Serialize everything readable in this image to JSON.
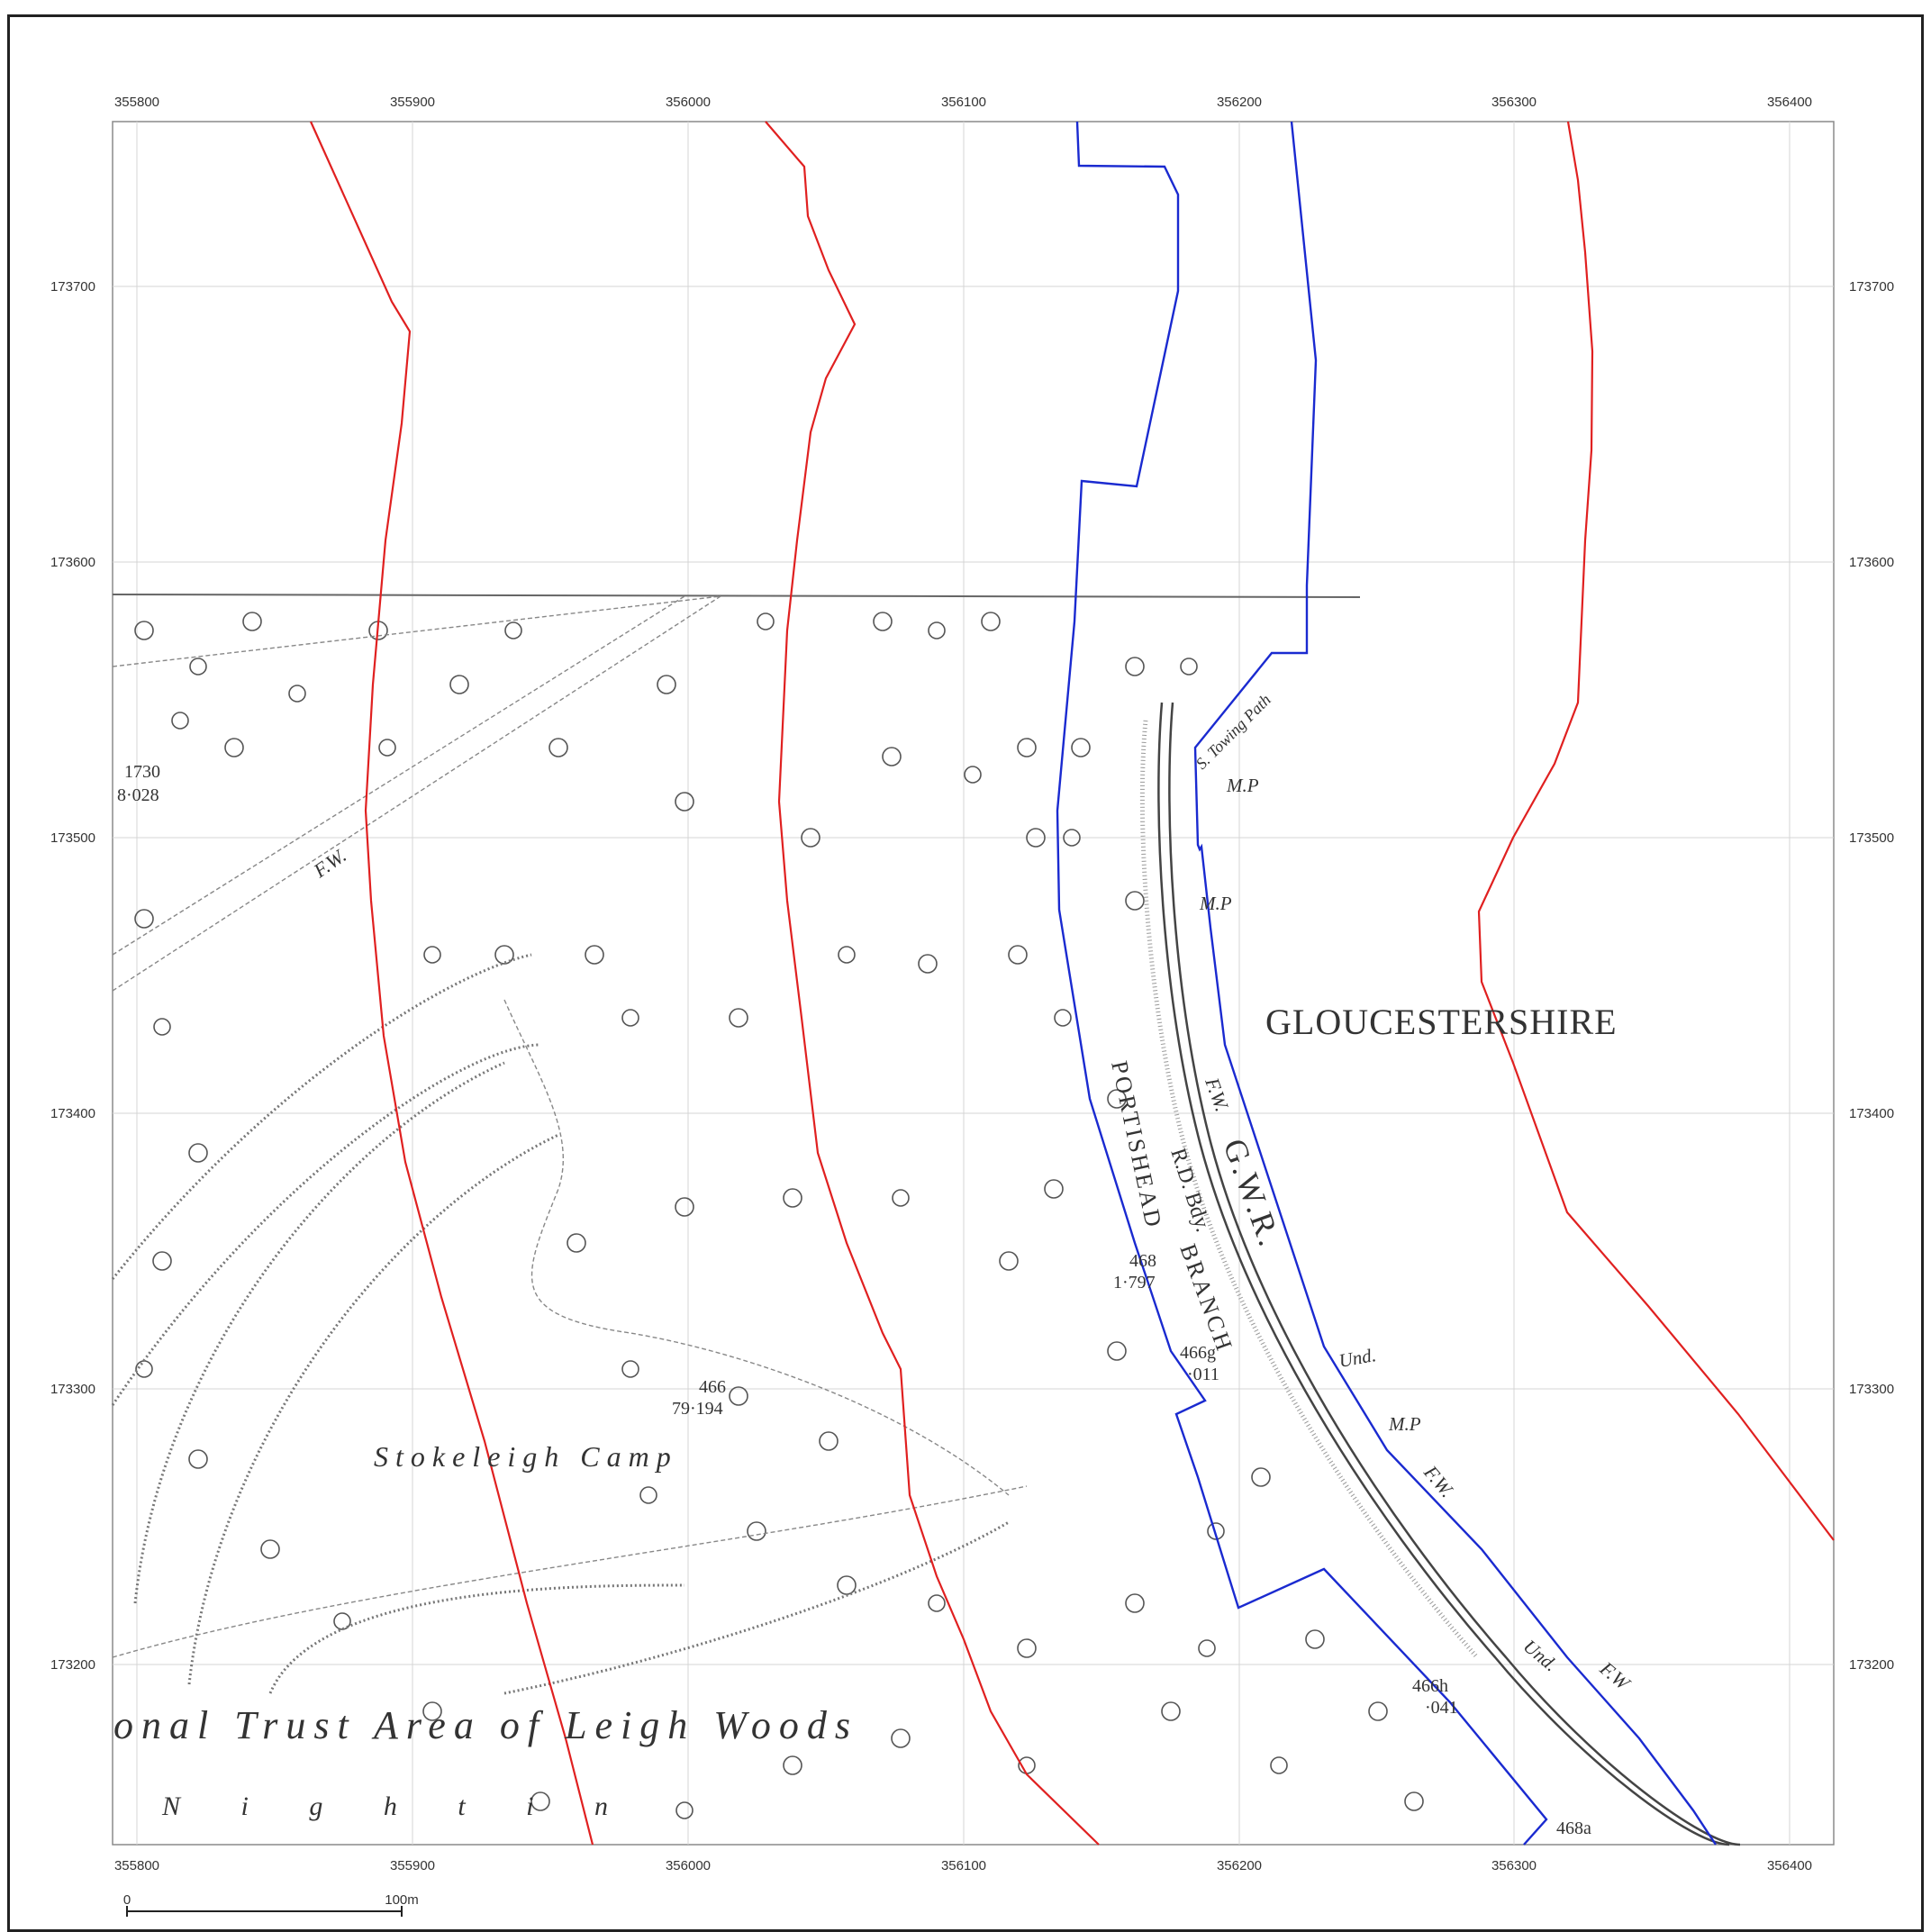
{
  "map": {
    "county_label": "GLOUCESTERSHIRE",
    "x_ticks": [
      "355800",
      "355900",
      "356000",
      "356100",
      "356200",
      "356300",
      "356400"
    ],
    "y_ticks": [
      "173700",
      "173600",
      "173500",
      "173400",
      "173300",
      "173200"
    ],
    "scale_bar": {
      "start_label": "0",
      "end_label": "100m"
    },
    "labels": {
      "camp": "Stokeleigh Camp",
      "trust": "onal Trust Area of Leigh Woods",
      "nightingale": "N i g h t i n",
      "portishead": "PORTISHEAD",
      "branch": "BRANCH",
      "rd_bdy": "R.D. Bdy.",
      "gwr": "G.W.R.",
      "fw_1": "F.W.",
      "fw_2": "F.W.",
      "fw_3": "F.W.",
      "fw_4": "F.W",
      "towing_path": "S. Towing Path",
      "mp_1": "M.P",
      "mp_2": "M.P",
      "mp_3": "M.P",
      "und_1": "Und.",
      "und_2": "Und.",
      "parcel_1730": "1730",
      "area_1730": "8·028",
      "parcel_466": "466",
      "area_466": "79·194",
      "parcel_468": "468",
      "area_468": "1·797",
      "parcel_466g": "466g",
      "area_466g": "·011",
      "parcel_466h": "466h",
      "area_466h": "·041",
      "parcel_468a": "468a"
    },
    "colors": {
      "buffer_line": "#e02020",
      "site_boundary": "#1a2ad0",
      "grid": "#d4d4d4",
      "base_map_ink": "#333333"
    }
  }
}
